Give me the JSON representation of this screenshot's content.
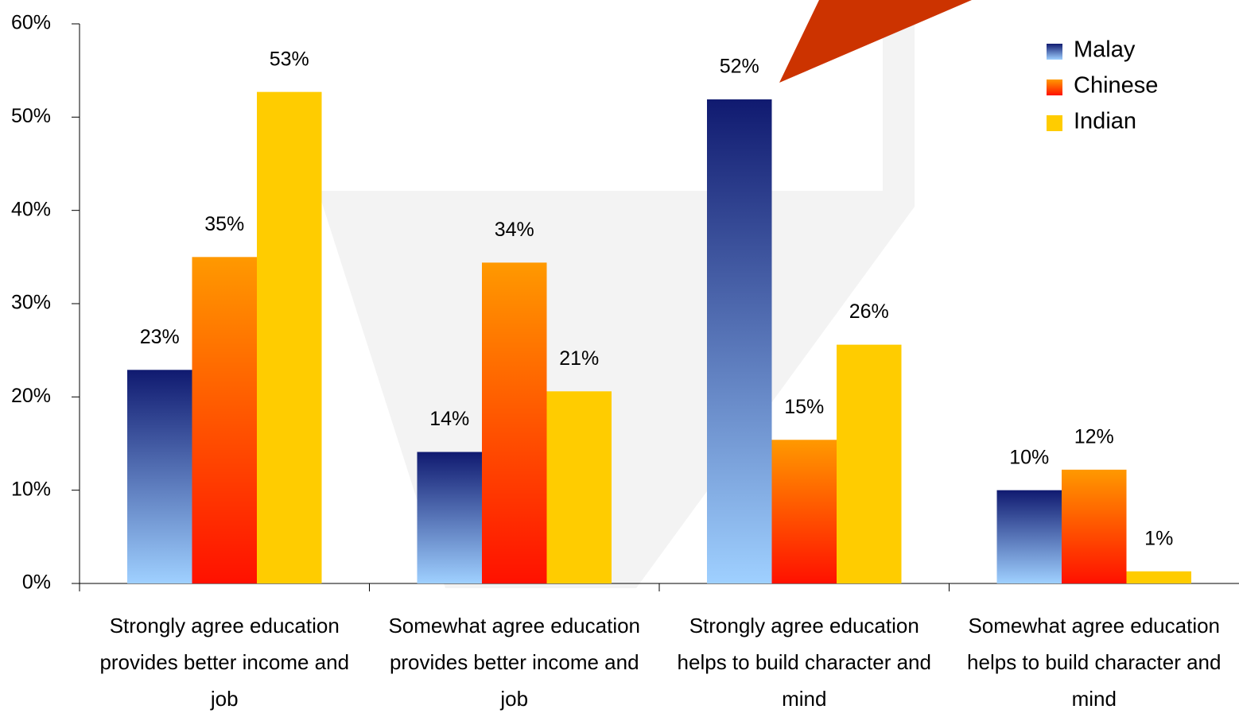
{
  "chart_data": {
    "type": "bar",
    "categories": [
      "Strongly agree education provides better income and job",
      "Somewhat agree education provides better income and job",
      "Strongly agree education helps to build character and mind",
      "Somewhat agree education helps to build character and mind"
    ],
    "series": [
      {
        "name": "Malay",
        "color": "#14207a",
        "gradient": [
          "#101a70",
          "#9fd0ff"
        ],
        "values": [
          22.9,
          14.1,
          51.9,
          10.0
        ],
        "value_labels": [
          "23%",
          "14%",
          "52%",
          "10%"
        ]
      },
      {
        "name": "Chinese",
        "color": "#ff8c00",
        "gradient": [
          "#ff9900",
          "#ff1100"
        ],
        "values": [
          35.0,
          34.4,
          15.4,
          12.2
        ],
        "value_labels": [
          "35%",
          "34%",
          "15%",
          "12%"
        ]
      },
      {
        "name": "Indian",
        "color": "#ffcc00",
        "gradient": [
          "#ffcc00",
          "#ffcc00"
        ],
        "values": [
          52.7,
          20.6,
          25.6,
          1.3
        ],
        "value_labels": [
          "53%",
          "21%",
          "26%",
          "1%"
        ]
      }
    ],
    "ylim": [
      0,
      60
    ],
    "yticks": [
      {
        "value": 0,
        "label": "0%"
      },
      {
        "value": 10,
        "label": "10%"
      },
      {
        "value": 20,
        "label": "20%"
      },
      {
        "value": 30,
        "label": "30%"
      },
      {
        "value": 40,
        "label": "40%"
      },
      {
        "value": 50,
        "label": "50%"
      },
      {
        "value": 60,
        "label": "60%"
      }
    ],
    "grid": false,
    "legend": "top-right"
  }
}
